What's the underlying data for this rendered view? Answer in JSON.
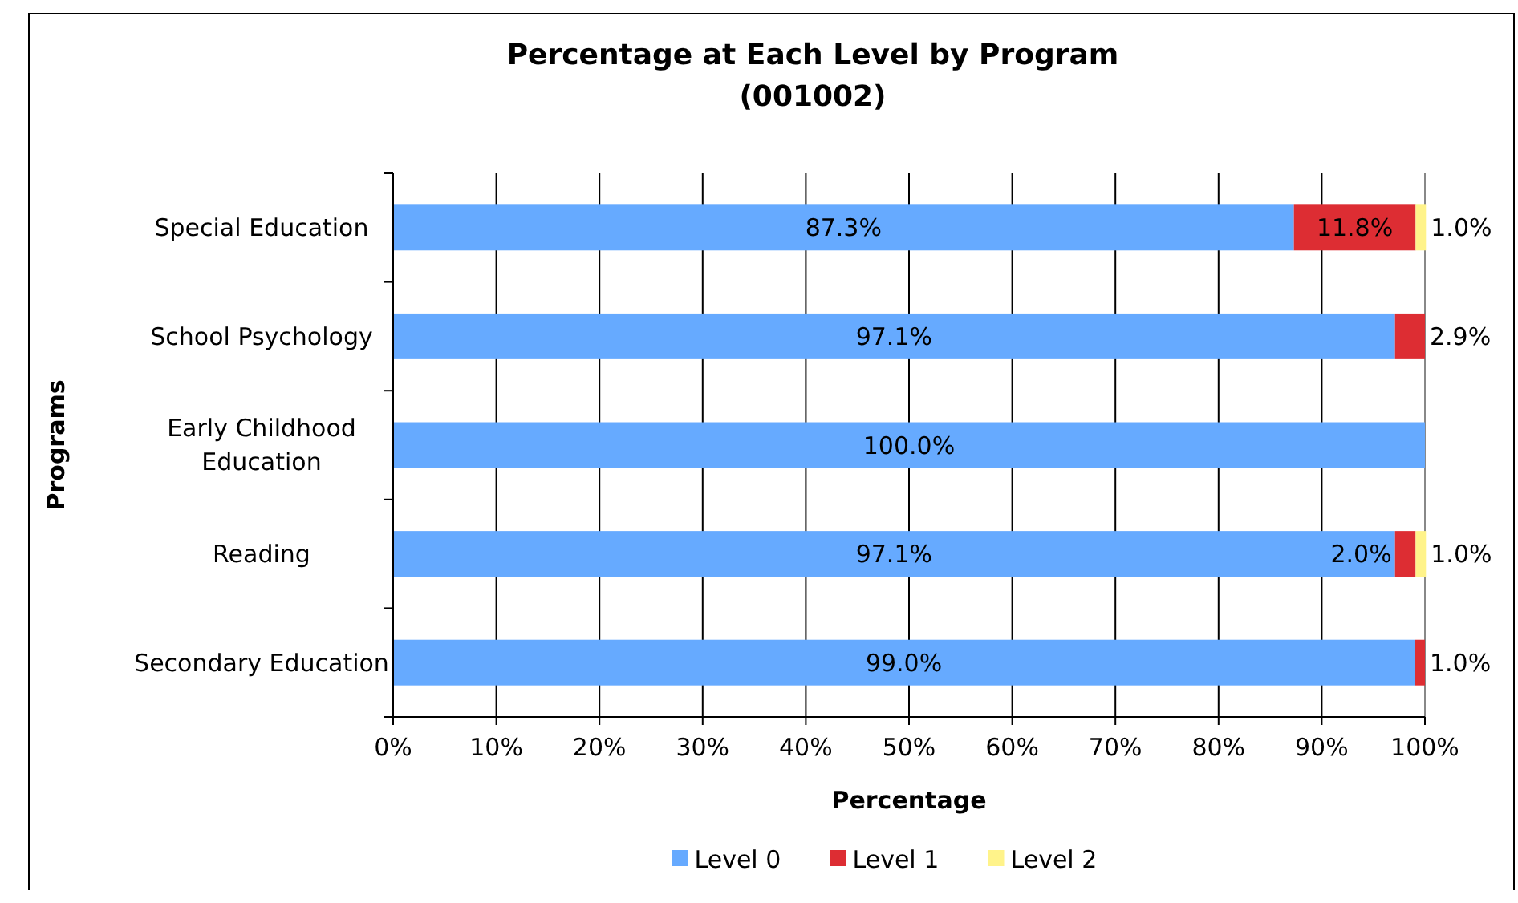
{
  "chart_data": {
    "type": "bar",
    "orientation": "horizontal",
    "stacked": true,
    "title": "Percentage at Each Level by Program\n(001002)",
    "xlabel": "Percentage",
    "ylabel": "Programs",
    "categories": [
      "Special Education",
      "School Psychology",
      "Early Childhood Education",
      "Reading",
      "Secondary Education"
    ],
    "series": [
      {
        "name": "Level 0",
        "color": "#66aaff",
        "values": [
          87.3,
          97.1,
          100.0,
          97.1,
          99.0
        ],
        "value_labels": [
          "87.3%",
          "97.1%",
          "100.0%",
          "97.1%",
          "99.0%"
        ]
      },
      {
        "name": "Level 1",
        "color": "#dd2d33",
        "values": [
          11.8,
          2.9,
          0,
          2.0,
          1.0
        ],
        "value_labels": [
          "11.8%",
          "2.9%",
          null,
          "2.0%",
          "1.0%"
        ]
      },
      {
        "name": "Level 2",
        "color": "#fff38a",
        "values": [
          1.0,
          0,
          0,
          1.0,
          0
        ],
        "value_labels": [
          "1.0%",
          null,
          null,
          "1.0%",
          null
        ]
      }
    ],
    "xlim": [
      0,
      100
    ],
    "xticks": [
      {
        "value": 0,
        "label": "0%"
      },
      {
        "value": 10,
        "label": "10%"
      },
      {
        "value": 20,
        "label": "20%"
      },
      {
        "value": 30,
        "label": "30%"
      },
      {
        "value": 40,
        "label": "40%"
      },
      {
        "value": 50,
        "label": "50%"
      },
      {
        "value": 60,
        "label": "60%"
      },
      {
        "value": 70,
        "label": "70%"
      },
      {
        "value": 80,
        "label": "80%"
      },
      {
        "value": 90,
        "label": "90%"
      },
      {
        "value": 100,
        "label": "100%"
      }
    ],
    "grid": "x",
    "legend": "bottom"
  }
}
